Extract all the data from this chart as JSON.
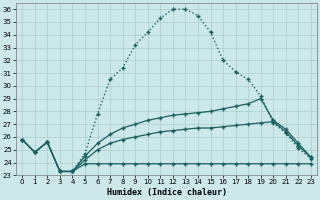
{
  "xlabel": "Humidex (Indice chaleur)",
  "background_color": "#cce8e8",
  "grid_color": "#aacccc",
  "line_color": "#1a6060",
  "xlim": [
    -0.5,
    23.5
  ],
  "ylim": [
    23,
    36.5
  ],
  "yticks": [
    23,
    24,
    25,
    26,
    27,
    28,
    29,
    30,
    31,
    32,
    33,
    34,
    35,
    36
  ],
  "xticks": [
    0,
    1,
    2,
    3,
    4,
    5,
    6,
    7,
    8,
    9,
    10,
    11,
    12,
    13,
    14,
    15,
    16,
    17,
    18,
    19,
    20,
    21,
    22,
    23
  ],
  "s1_x": [
    0,
    1,
    2,
    3,
    4,
    5,
    6,
    7,
    8,
    9,
    10,
    11,
    12,
    13,
    14,
    15,
    16,
    17,
    18,
    19,
    20,
    21,
    22,
    23
  ],
  "s1_y": [
    25.8,
    24.8,
    25.6,
    23.3,
    23.3,
    24.7,
    27.8,
    30.5,
    31.4,
    33.2,
    34.2,
    35.3,
    36.0,
    36.0,
    35.5,
    34.2,
    32.0,
    31.1,
    30.5,
    29.2,
    27.1,
    26.3,
    25.1,
    24.3
  ],
  "s2_x": [
    0,
    1,
    2,
    3,
    4,
    5,
    6,
    7,
    8,
    9,
    10,
    11,
    12,
    13,
    14,
    15,
    16,
    17,
    18,
    19,
    20,
    21,
    22,
    23
  ],
  "s2_y": [
    25.8,
    24.8,
    25.6,
    23.3,
    23.3,
    24.5,
    25.5,
    26.2,
    26.7,
    27.0,
    27.3,
    27.5,
    27.7,
    27.8,
    27.9,
    28.0,
    28.2,
    28.4,
    28.6,
    29.0,
    27.3,
    26.6,
    25.5,
    24.4
  ],
  "s3_x": [
    0,
    1,
    2,
    3,
    4,
    5,
    6,
    7,
    8,
    9,
    10,
    11,
    12,
    13,
    14,
    15,
    16,
    17,
    18,
    19,
    20,
    21,
    22,
    23
  ],
  "s3_y": [
    25.8,
    24.8,
    25.6,
    23.3,
    23.3,
    24.2,
    25.0,
    25.5,
    25.8,
    26.0,
    26.2,
    26.4,
    26.5,
    26.6,
    26.7,
    26.7,
    26.8,
    26.9,
    27.0,
    27.1,
    27.2,
    26.4,
    25.3,
    24.4
  ],
  "s4_x": [
    0,
    1,
    2,
    3,
    4,
    5,
    6,
    7,
    8,
    9,
    10,
    11,
    12,
    13,
    14,
    15,
    16,
    17,
    18,
    19,
    20,
    21,
    22,
    23
  ],
  "s4_y": [
    25.8,
    24.8,
    25.6,
    23.3,
    23.3,
    23.9,
    23.9,
    23.9,
    23.9,
    23.9,
    23.9,
    23.9,
    23.9,
    23.9,
    23.9,
    23.9,
    23.9,
    23.9,
    23.9,
    23.9,
    23.9,
    23.9,
    23.9,
    23.9
  ]
}
